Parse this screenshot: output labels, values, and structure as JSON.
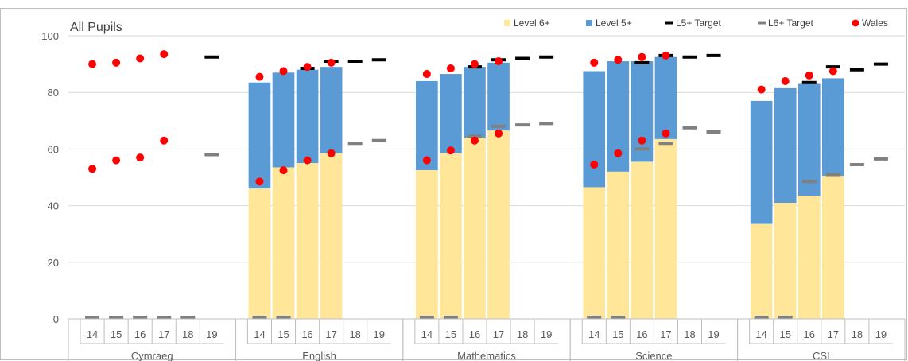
{
  "chart_data": {
    "type": "bar",
    "title": "All Pupils",
    "ylim": [
      0,
      100
    ],
    "yticks": [
      0,
      20,
      40,
      60,
      80,
      100
    ],
    "groups": [
      "Cymraeg",
      "English",
      "Mathematics",
      "Science",
      "CSI"
    ],
    "years": [
      "14",
      "15",
      "16",
      "17",
      "18",
      "19"
    ],
    "legend": {
      "position": "top-right",
      "items": [
        "Level 6+",
        "Level 5+",
        "L5+ Target",
        "L6+ Target",
        "Wales"
      ]
    },
    "colors": {
      "level6": "#FFE699",
      "level5": "#5B9BD5",
      "l5_target": "#000000",
      "l6_target": "#808080",
      "wales": "#FF0000",
      "grid": "#D9D9D9",
      "axis": "#BFBFBF"
    },
    "series": [
      {
        "name": "Level 6+",
        "values": {
          "Cymraeg": [
            null,
            null,
            null,
            null,
            null,
            null
          ],
          "English": [
            46,
            53.5,
            55,
            58.5,
            null,
            null
          ],
          "Mathematics": [
            52.5,
            58.5,
            64,
            66.5,
            null,
            null
          ],
          "Science": [
            46.5,
            52,
            55.5,
            63.5,
            null,
            null
          ],
          "CSI": [
            33.5,
            41,
            43.5,
            50.5,
            null,
            null
          ]
        }
      },
      {
        "name": "Level 5+",
        "values": {
          "Cymraeg": [
            null,
            null,
            null,
            null,
            null,
            null
          ],
          "English": [
            83.5,
            87,
            88,
            89,
            null,
            null
          ],
          "Mathematics": [
            84,
            86.5,
            89,
            90.5,
            null,
            null
          ],
          "Science": [
            87.5,
            91,
            91,
            92.5,
            null,
            null
          ],
          "CSI": [
            77,
            81.5,
            83,
            85,
            null,
            null
          ]
        }
      },
      {
        "name": "L5+ Target",
        "values": {
          "Cymraeg": [
            null,
            null,
            null,
            null,
            null,
            92.5
          ],
          "English": [
            null,
            null,
            88.5,
            91,
            91,
            91.5
          ],
          "Mathematics": [
            null,
            null,
            89,
            91.5,
            92,
            92.5
          ],
          "Science": [
            null,
            null,
            90.5,
            93,
            92.5,
            93
          ],
          "CSI": [
            null,
            null,
            83.5,
            89,
            88,
            90
          ]
        }
      },
      {
        "name": "L6+ Target",
        "values": {
          "Cymraeg": [
            0,
            0,
            0,
            0,
            0,
            58
          ],
          "English": [
            0,
            0,
            null,
            null,
            62,
            63
          ],
          "Mathematics": [
            0,
            0,
            64.5,
            68,
            68.5,
            69
          ],
          "Science": [
            0,
            0,
            60,
            62,
            67.5,
            66
          ],
          "CSI": [
            0,
            0,
            48.5,
            51,
            54.5,
            56.5
          ]
        }
      },
      {
        "name": "Wales",
        "values_l5": {
          "Cymraeg": [
            90,
            90.5,
            92,
            93.5,
            null,
            null
          ],
          "English": [
            85.5,
            87.5,
            89,
            90.5,
            null,
            null
          ],
          "Mathematics": [
            86.5,
            88.5,
            90,
            91,
            null,
            null
          ],
          "Science": [
            90.5,
            91.5,
            92.5,
            93,
            null,
            null
          ],
          "CSI": [
            81,
            84,
            86,
            87.5,
            null,
            null
          ]
        },
        "values_l6": {
          "Cymraeg": [
            53,
            56,
            57,
            63,
            null,
            null
          ],
          "English": [
            48.5,
            52.5,
            56,
            58.5,
            null,
            null
          ],
          "Mathematics": [
            56,
            59.5,
            63,
            65.5,
            null,
            null
          ],
          "Science": [
            54.5,
            58.5,
            63,
            65.5,
            null,
            null
          ],
          "CSI": [
            null,
            null,
            null,
            null,
            null,
            null
          ]
        }
      }
    ]
  }
}
